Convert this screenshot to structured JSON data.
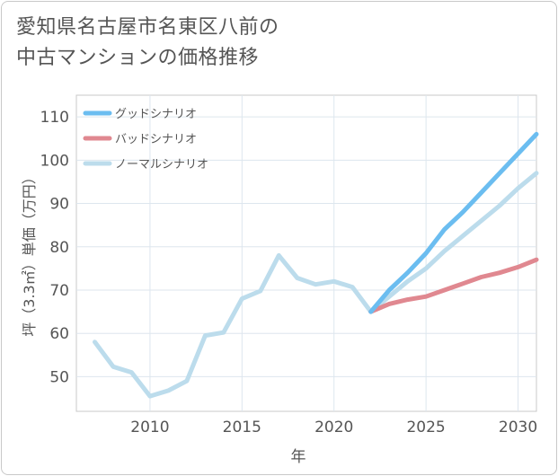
{
  "title_line1": "愛知県名古屋市名東区八前の",
  "title_line2": "中古マンションの価格推移",
  "chart_data": {
    "type": "line",
    "xlabel": "年",
    "ylabel": "坪（3.3㎡）単価（万円）",
    "xlim": [
      2006,
      2031
    ],
    "ylim": [
      42,
      115
    ],
    "xticks": [
      2010,
      2015,
      2020,
      2025,
      2030
    ],
    "yticks": [
      50,
      60,
      70,
      80,
      90,
      100,
      110
    ],
    "grid": true,
    "legend_position": "top-left",
    "series": [
      {
        "name": "グッドシナリオ",
        "color": "#6bbdf0",
        "x": [
          2022,
          2023,
          2024,
          2025,
          2026,
          2027,
          2028,
          2029,
          2030,
          2031
        ],
        "y": [
          65,
          70,
          74,
          78.5,
          84,
          88,
          92.5,
          97,
          101.5,
          106
        ]
      },
      {
        "name": "バッドシナリオ",
        "color": "#e08890",
        "x": [
          2022,
          2023,
          2024,
          2025,
          2026,
          2027,
          2028,
          2029,
          2030,
          2031
        ],
        "y": [
          65,
          66.8,
          67.8,
          68.5,
          70,
          71.5,
          73,
          74,
          75.3,
          77
        ]
      },
      {
        "name": "ノーマルシナリオ",
        "color": "#bcdcec",
        "x": [
          2007,
          2008,
          2009,
          2010,
          2011,
          2012,
          2013,
          2014,
          2015,
          2016,
          2017,
          2018,
          2019,
          2020,
          2021,
          2022,
          2023,
          2024,
          2025,
          2026,
          2027,
          2028,
          2029,
          2030,
          2031
        ],
        "y": [
          58,
          52.3,
          51,
          45.5,
          46.8,
          49,
          59.5,
          60.2,
          68,
          69.8,
          78,
          72.8,
          71.3,
          72,
          70.7,
          65,
          68.5,
          72,
          75,
          79,
          82.5,
          86,
          89.5,
          93.5,
          97
        ]
      }
    ]
  }
}
